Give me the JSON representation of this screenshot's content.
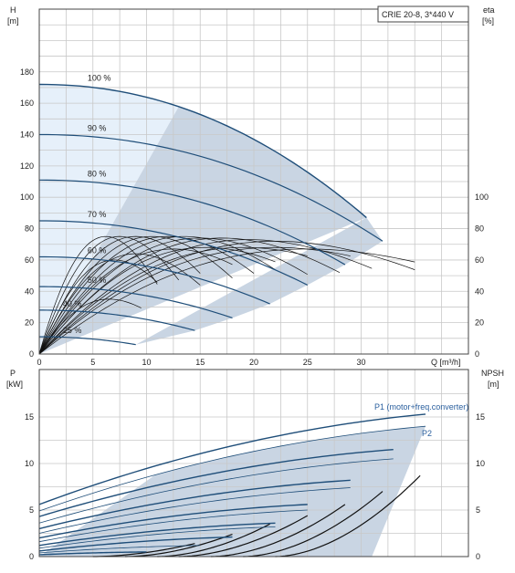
{
  "colors": {
    "curve": "#1f4e79",
    "eff": "#111111",
    "shade": "#c9d5e3",
    "light_shade": "#e6f0fa",
    "grid": "#c8c8c8",
    "p1_label": "#2a5f9e"
  },
  "chart_data": [
    {
      "type": "line",
      "title": "CRIE 20-8, 3*440 V",
      "xlabel": "Q [m³/h]",
      "ylabel": "H",
      "ylabel_unit": "[m]",
      "y2label": "eta",
      "y2label_unit": "[%]",
      "xlim": [
        0,
        40
      ],
      "xticks": [
        0,
        5,
        10,
        15,
        20,
        25,
        30
      ],
      "ylim": [
        0,
        200
      ],
      "yticks": [
        0,
        20,
        40,
        60,
        80,
        100,
        120,
        140,
        160,
        180
      ],
      "y2ticks": [
        0,
        20,
        40,
        60,
        80,
        100
      ],
      "grid": true,
      "head_curves": [
        {
          "label": "100 %",
          "shutoff": 172,
          "end_q": 30.5,
          "end_h": 87
        },
        {
          "label": "90 %",
          "shutoff": 140,
          "end_q": 32,
          "end_h": 72
        },
        {
          "label": "80 %",
          "shutoff": 111,
          "end_q": 28.5,
          "end_h": 57
        },
        {
          "label": "70 %",
          "shutoff": 85,
          "end_q": 25,
          "end_h": 44
        },
        {
          "label": "60 %",
          "shutoff": 62,
          "end_q": 21.5,
          "end_h": 32
        },
        {
          "label": "50 %",
          "shutoff": 43,
          "end_q": 18,
          "end_h": 23
        },
        {
          "label": "40 %",
          "shutoff": 28,
          "end_q": 14.5,
          "end_h": 15
        },
        {
          "label": "25 %",
          "shutoff": 11,
          "end_q": 9,
          "end_h": 6
        }
      ],
      "efficiency_curves": [
        {
          "q_peak": 6.2,
          "eta_peak": 75,
          "q_end": 11
        },
        {
          "q_peak": 7.5,
          "eta_peak": 75,
          "q_end": 13
        },
        {
          "q_peak": 9.0,
          "eta_peak": 75,
          "q_end": 15
        },
        {
          "q_peak": 10.5,
          "eta_peak": 75,
          "q_end": 18
        },
        {
          "q_peak": 12.0,
          "eta_peak": 75,
          "q_end": 20
        },
        {
          "q_peak": 13.5,
          "eta_peak": 75,
          "q_end": 22
        },
        {
          "q_peak": 15.0,
          "eta_peak": 74,
          "q_end": 25
        },
        {
          "q_peak": 17.0,
          "eta_peak": 74,
          "q_end": 28
        },
        {
          "q_peak": 19.5,
          "eta_peak": 73,
          "q_end": 31
        },
        {
          "q_peak": 22.0,
          "eta_peak": 72,
          "q_end": 35
        },
        {
          "q_peak": 7.0,
          "eta_peak": 60,
          "q_end": 11
        },
        {
          "q_peak": 9.0,
          "eta_peak": 64,
          "q_end": 15
        },
        {
          "q_peak": 12.5,
          "eta_peak": 67,
          "q_end": 18
        },
        {
          "q_peak": 15.5,
          "eta_peak": 68,
          "q_end": 22
        },
        {
          "q_peak": 19.0,
          "eta_peak": 68,
          "q_end": 25
        },
        {
          "q_peak": 22.0,
          "eta_peak": 68,
          "q_end": 29
        },
        {
          "q_peak": 25.0,
          "eta_peak": 67,
          "q_end": 35
        },
        {
          "q_peak": 6.5,
          "eta_peak": 35,
          "q_end": 9.5
        }
      ]
    },
    {
      "type": "line",
      "xlabel": "",
      "ylabel": "P",
      "ylabel_unit": "[kW]",
      "y2label": "NPSH",
      "y2label_unit": "[m]",
      "xlim": [
        0,
        40
      ],
      "ylim": [
        0,
        18
      ],
      "yticks": [
        0,
        5,
        10,
        15
      ],
      "y2ticks": [
        0,
        5,
        10,
        15
      ],
      "grid": true,
      "series_labels": [
        "P1 (motor+freq.converter)",
        "P2"
      ],
      "power_curves": [
        {
          "p0": 5.6,
          "q_end": 36,
          "p_end": 15.3
        },
        {
          "p0": 4.9,
          "q_end": 36,
          "p_end": 14.0
        },
        {
          "p0": 4.3,
          "q_end": 33,
          "p_end": 11.5
        },
        {
          "p0": 3.6,
          "q_end": 33,
          "p_end": 10.5
        },
        {
          "p0": 3.0,
          "q_end": 29,
          "p_end": 8.2
        },
        {
          "p0": 2.5,
          "q_end": 29,
          "p_end": 7.4
        },
        {
          "p0": 2.0,
          "q_end": 25,
          "p_end": 5.6
        },
        {
          "p0": 1.6,
          "q_end": 25,
          "p_end": 5.0
        },
        {
          "p0": 1.2,
          "q_end": 22,
          "p_end": 3.6
        },
        {
          "p0": 0.9,
          "q_end": 22,
          "p_end": 3.2
        },
        {
          "p0": 0.6,
          "q_end": 18,
          "p_end": 2.1
        },
        {
          "p0": 0.4,
          "q_end": 15,
          "p_end": 1.2
        },
        {
          "p0": 0.2,
          "q_end": 10,
          "p_end": 0.5
        }
      ],
      "npsh_curves": [
        {
          "q_start": 5,
          "q_end": 14.5,
          "h_end": 1.4
        },
        {
          "q_start": 8,
          "q_end": 18,
          "h_end": 2.4
        },
        {
          "q_start": 11,
          "q_end": 21.5,
          "h_end": 3.5
        },
        {
          "q_start": 13,
          "q_end": 25,
          "h_end": 4.4
        },
        {
          "q_start": 16,
          "q_end": 28.5,
          "h_end": 5.6
        },
        {
          "q_start": 19,
          "q_end": 32,
          "h_end": 7.0
        },
        {
          "q_start": 22,
          "q_end": 35.5,
          "h_end": 8.7
        }
      ]
    }
  ]
}
